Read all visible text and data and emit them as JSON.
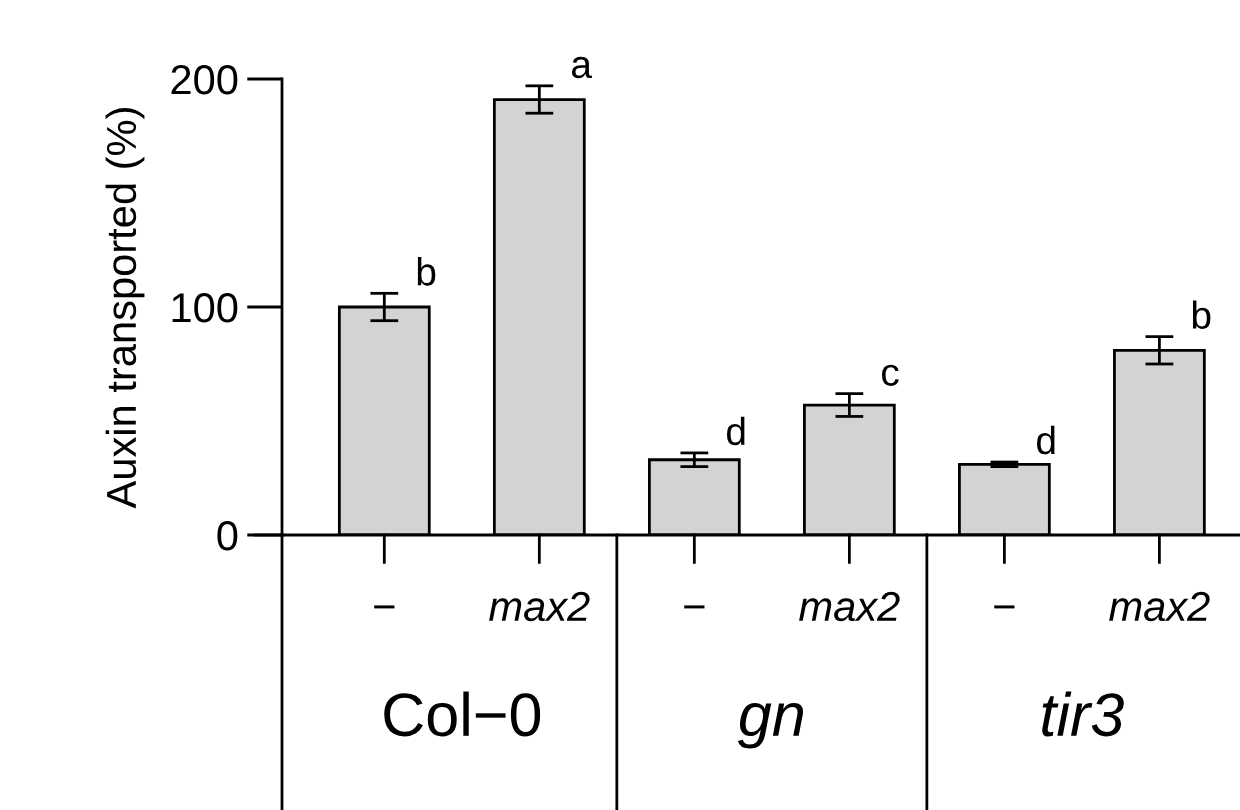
{
  "chart_data": {
    "type": "bar",
    "ylabel": "Auxin transported (%)",
    "categories": [
      "−",
      "max2",
      "−",
      "max2",
      "−",
      "max2"
    ],
    "values": [
      100,
      191,
      33,
      57,
      31,
      81
    ],
    "errors": [
      6,
      6,
      3,
      5,
      1,
      6
    ],
    "value_labels": [
      "b",
      "a",
      "d",
      "c",
      "d",
      "b"
    ],
    "color": "#d3d3d3",
    "annotations": [
      "Col−0",
      "gn",
      "tir3"
    ],
    "ylim": [
      0,
      200
    ],
    "yticks": [
      0,
      100,
      200
    ],
    "grid": false,
    "legend": false
  }
}
